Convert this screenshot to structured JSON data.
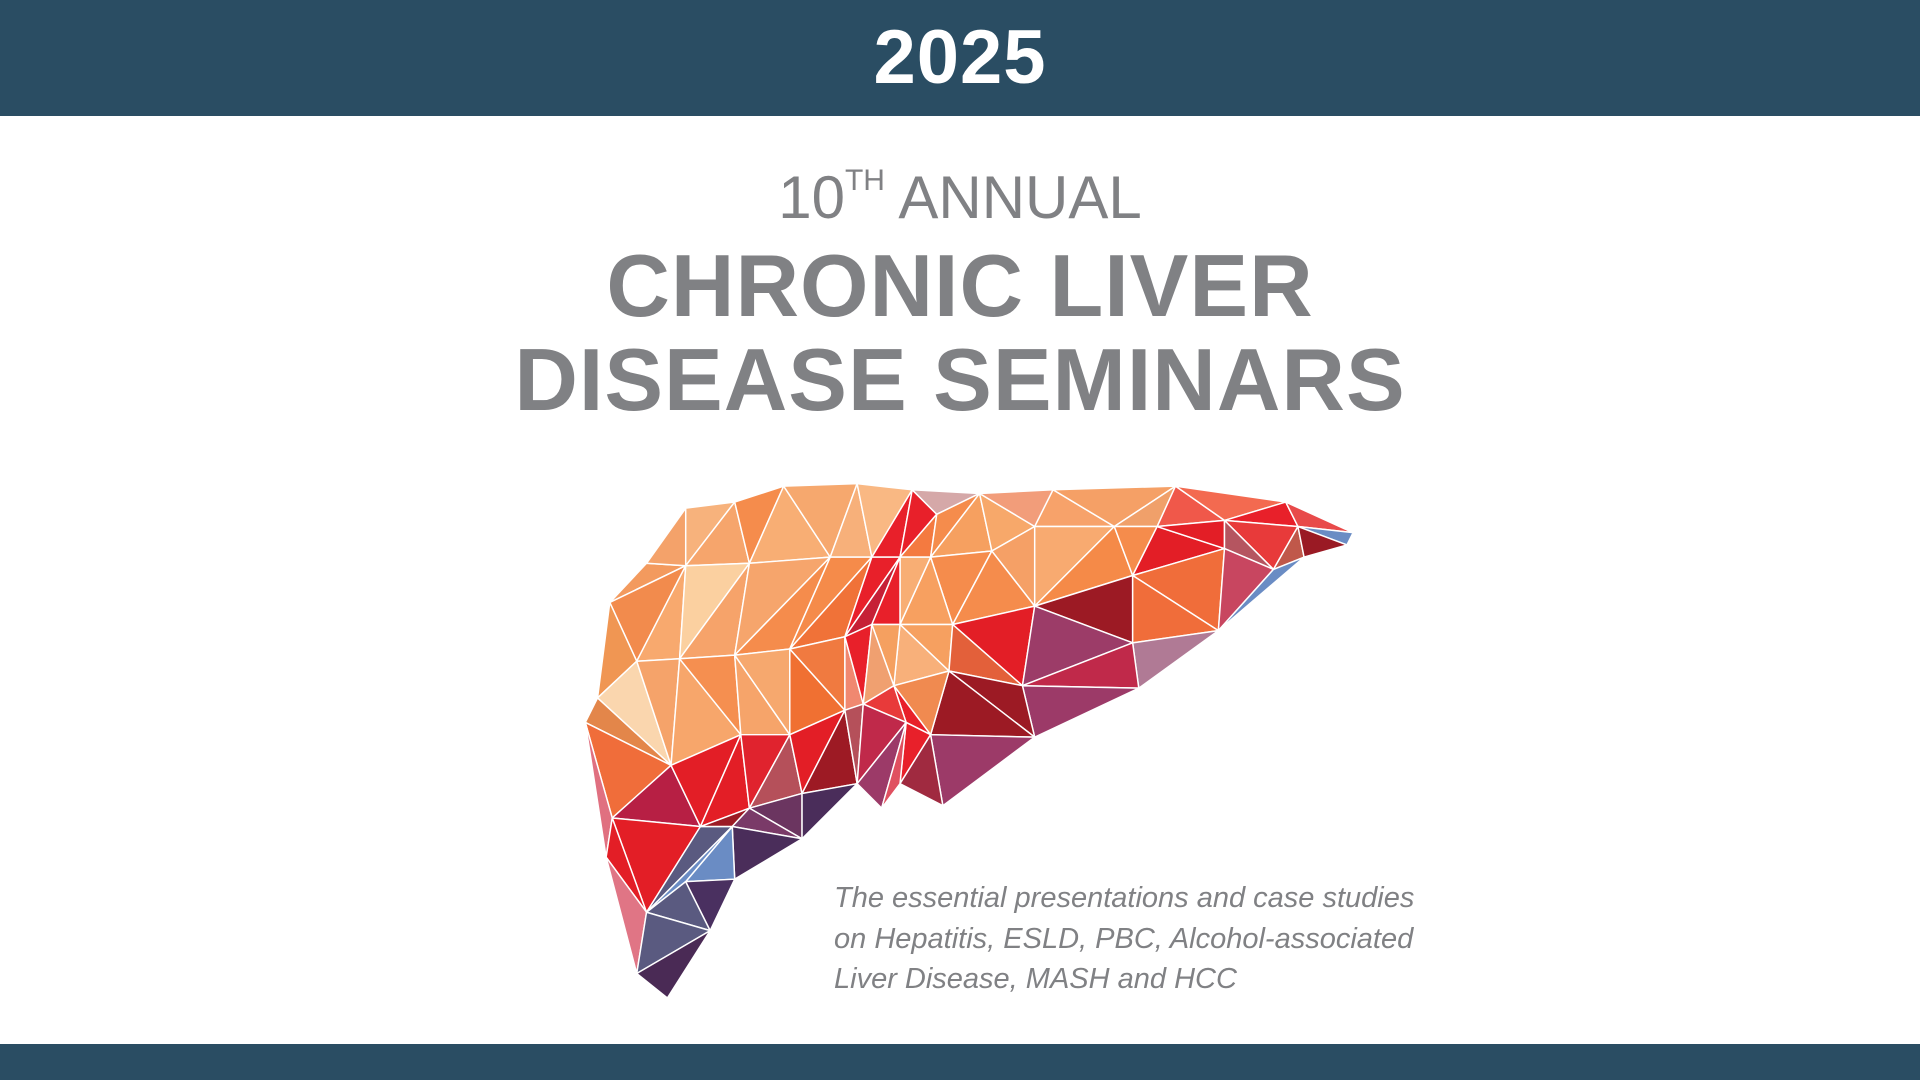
{
  "header": {
    "year": "2025"
  },
  "title": {
    "edition_number": "10",
    "edition_suffix": "TH",
    "edition_word": "ANNUAL",
    "line1": "CHRONIC LIVER",
    "line2": "DISEASE SEMINARS"
  },
  "tagline": {
    "lines": [
      "The essential presentations and case studies",
      "on Hepatitis, ESLD, PBC, Alcohol-associated",
      "Liver Disease, MASH and HCC"
    ]
  },
  "colors": {
    "banner": "#2a4d63",
    "text_gray": "#808184",
    "liver_orange": "#f58c4c",
    "liver_red": "#e31e26",
    "liver_purple": "#9c3a68",
    "liver_blue": "#6a8cc4"
  },
  "illustration": {
    "icon": "low-poly-liver-illustration"
  }
}
